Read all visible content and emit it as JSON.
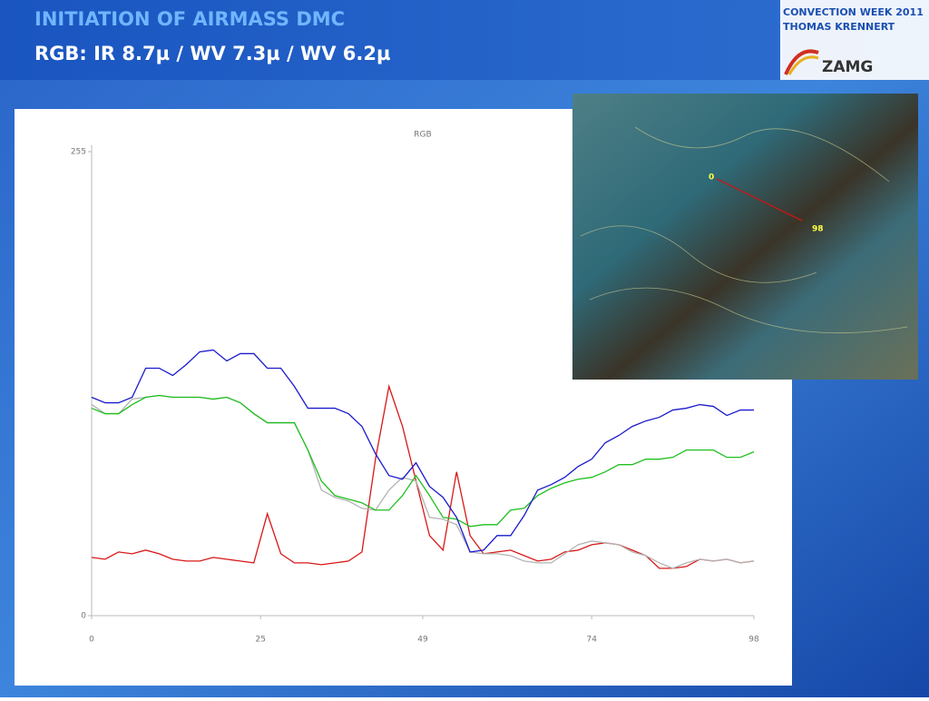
{
  "slide": {
    "title": "INITIATION OF AIRMASS DMC",
    "subtitle": "RGB: IR 8.7µ / WV 7.3µ / WV 6.2µ",
    "badge": {
      "line1": "CONVECTION WEEK 2011",
      "line2": "THOMAS KRENNERT",
      "logo": "ZAMG"
    },
    "map_labels": {
      "start": "0",
      "end": "98"
    }
  },
  "chart_data": {
    "type": "line",
    "title": "RGB",
    "x": [
      0,
      2,
      4,
      6,
      8,
      10,
      12,
      14,
      16,
      18,
      20,
      22,
      24,
      26,
      28,
      30,
      32,
      34,
      36,
      38,
      40,
      42,
      44,
      46,
      48,
      50,
      52,
      54,
      56,
      58,
      60,
      62,
      64,
      66,
      68,
      70,
      72,
      74,
      76,
      78,
      80,
      82,
      84,
      86,
      88,
      90,
      92,
      94,
      96,
      98
    ],
    "series": [
      {
        "color": "#d81818",
        "values": [
          32,
          31,
          35,
          34,
          36,
          34,
          31,
          30,
          30,
          32,
          31,
          30,
          29,
          56,
          34,
          29,
          29,
          28,
          29,
          30,
          35,
          86,
          126,
          104,
          74,
          44,
          36,
          79,
          44,
          34,
          35,
          36,
          33,
          30,
          31,
          35,
          36,
          39,
          40,
          39,
          36,
          33,
          26,
          26,
          27,
          31,
          30,
          31,
          29,
          30
        ]
      },
      {
        "color": "#b4b4b4",
        "values": [
          116,
          111,
          111,
          119,
          120,
          121,
          120,
          120,
          120,
          119,
          120,
          117,
          111,
          106,
          106,
          106,
          91,
          69,
          65,
          63,
          59,
          58,
          69,
          76,
          74,
          54,
          53,
          50,
          35,
          34,
          34,
          33,
          30,
          29,
          29,
          34,
          39,
          41,
          40,
          39,
          35,
          33,
          29,
          26,
          29,
          31,
          30,
          31,
          29,
          30
        ]
      },
      {
        "color": "#1fbf1f",
        "values": [
          114,
          111,
          111,
          116,
          120,
          121,
          120,
          120,
          120,
          119,
          120,
          117,
          111,
          106,
          106,
          106,
          91,
          74,
          66,
          64,
          62,
          58,
          58,
          66,
          77,
          66,
          54,
          53,
          49,
          50,
          50,
          58,
          59,
          66,
          70,
          73,
          75,
          76,
          79,
          83,
          83,
          86,
          86,
          87,
          91,
          91,
          91,
          87,
          87,
          90
        ]
      },
      {
        "color": "#1a1acc",
        "values": [
          120,
          117,
          117,
          120,
          136,
          136,
          132,
          138,
          145,
          146,
          140,
          144,
          144,
          136,
          136,
          126,
          114,
          114,
          114,
          111,
          104,
          89,
          77,
          75,
          84,
          71,
          65,
          54,
          35,
          36,
          44,
          44,
          55,
          69,
          72,
          76,
          82,
          86,
          95,
          99,
          104,
          107,
          109,
          113,
          114,
          116,
          115,
          110,
          113,
          113
        ]
      }
    ],
    "xlim": [
      0,
      98
    ],
    "ylim": [
      0,
      255
    ],
    "xticks": [
      0,
      25,
      49,
      74,
      98
    ],
    "yticks": [
      0,
      255
    ]
  }
}
